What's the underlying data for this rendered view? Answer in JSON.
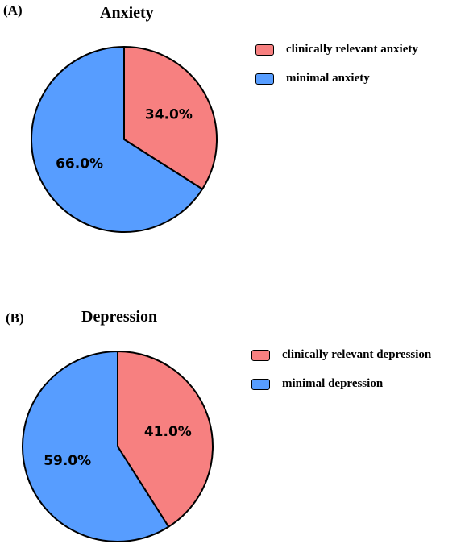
{
  "colors": {
    "clinically_relevant": "#F78080",
    "minimal": "#579DFF",
    "outline": "#000000"
  },
  "chart_data": [
    {
      "type": "pie",
      "panel_label": "(A)",
      "title": "Anxiety",
      "legend_position": "right",
      "slices": [
        {
          "name": "clinically relevant anxiety",
          "value": 34.0,
          "label": "34.0%"
        },
        {
          "name": "minimal anxiety",
          "value": 66.0,
          "label": "66.0%"
        }
      ]
    },
    {
      "type": "pie",
      "panel_label": "(B)",
      "title": "Depression",
      "legend_position": "right",
      "slices": [
        {
          "name": "clinically relevant depression",
          "value": 41.0,
          "label": "41.0%"
        },
        {
          "name": "minimal depression",
          "value": 59.0,
          "label": "59.0%"
        }
      ]
    }
  ]
}
